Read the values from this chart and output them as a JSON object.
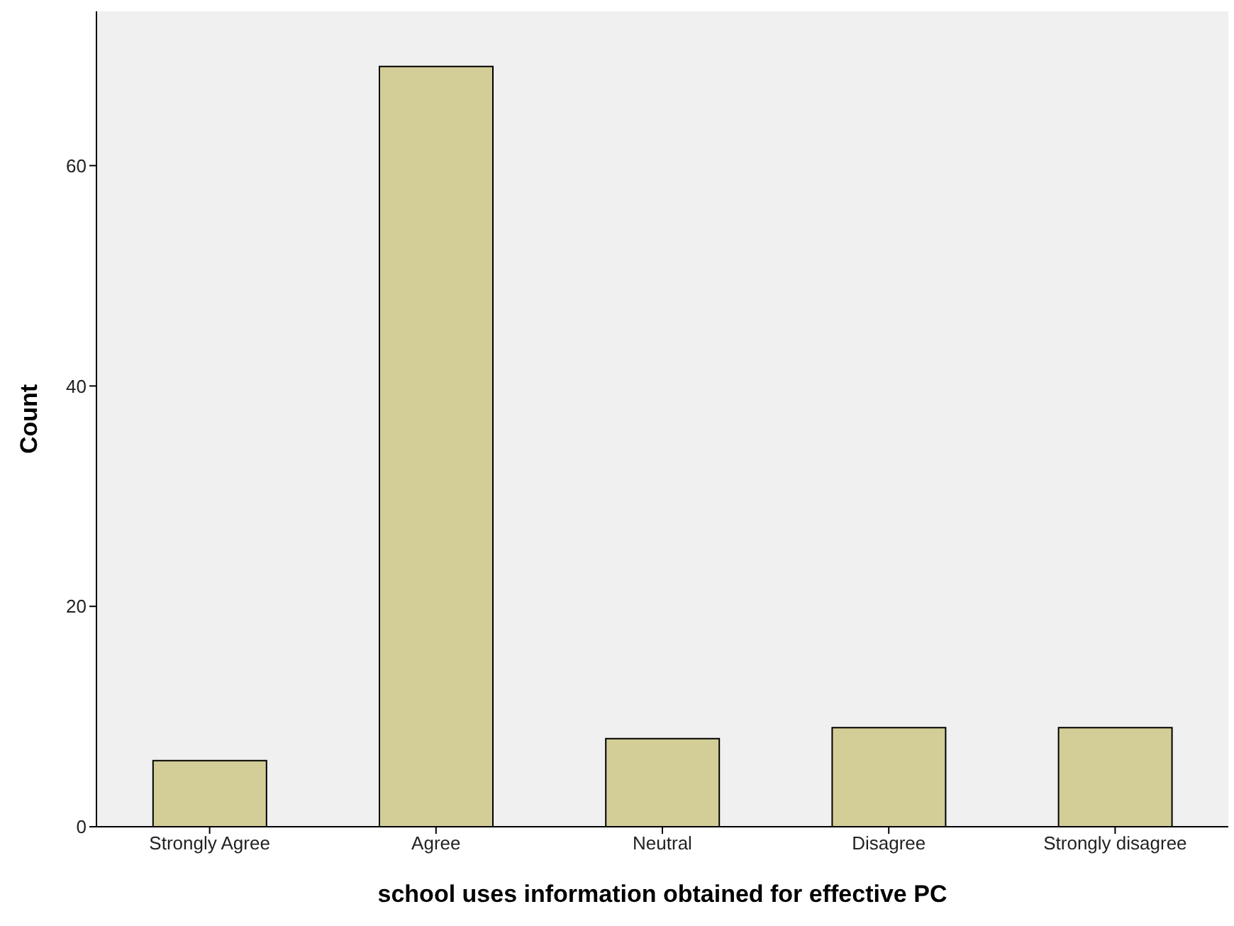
{
  "chart_data": {
    "type": "bar",
    "xlabel": "school uses information obtained for effective PC",
    "ylabel": "Count",
    "categories": [
      "Strongly Agree",
      "Agree",
      "Neutral",
      "Disagree",
      "Strongly disagree"
    ],
    "values": [
      6,
      69,
      8,
      9,
      9
    ],
    "color": "#d3ce97",
    "ylim": [
      0,
      74
    ],
    "yticks": [
      0,
      20,
      40,
      60
    ],
    "grid": false
  }
}
